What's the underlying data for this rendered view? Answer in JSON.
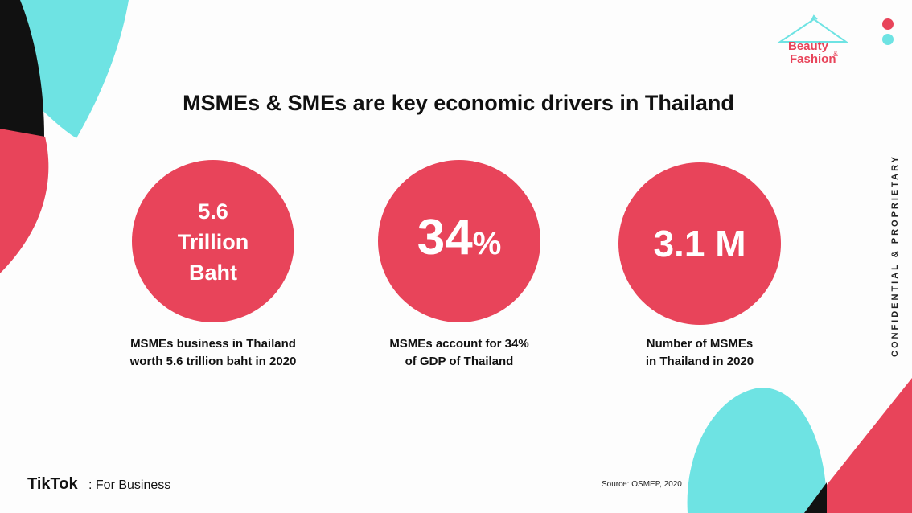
{
  "header": {
    "title": "MSMEs & SMEs are key economic drivers in Thailand"
  },
  "brand": {
    "beauty": "Beauty",
    "amp": "&",
    "fashion": "Fashion"
  },
  "stats": [
    {
      "figure": [
        "5.6",
        "Trillion",
        "Baht"
      ],
      "caption": [
        "MSMEs business in Thailand",
        "worth 5.6 trillion baht in 2020"
      ]
    },
    {
      "figure": {
        "number": "34",
        "unit": "%"
      },
      "caption": [
        "MSMEs account for 34%",
        "of GDP of Thailand"
      ]
    },
    {
      "figure": [
        "3.1 M"
      ],
      "caption": [
        "Number of MSMEs",
        "in Thailand in 2020"
      ]
    }
  ],
  "side_note": "CONFIDENTIAL & PROPRIETARY",
  "footer": {
    "logo": "TikTok",
    "logo_suffix": "For Business",
    "source": "Source: OSMEP, 2020"
  }
}
